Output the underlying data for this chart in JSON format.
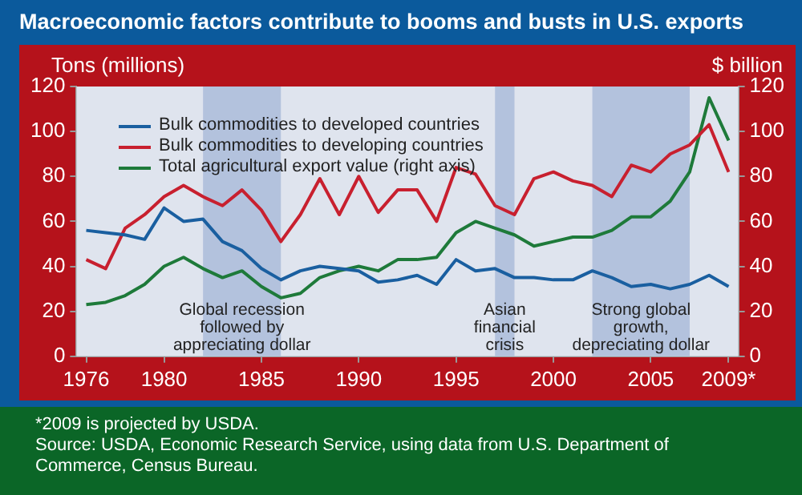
{
  "chart_data": {
    "type": "line",
    "title": "Macroeconomic factors contribute to booms and busts in U.S. exports",
    "ylabel": "Tons (millions)",
    "y2label": "$ billion",
    "x": [
      1976,
      1977,
      1978,
      1979,
      1980,
      1981,
      1982,
      1983,
      1984,
      1985,
      1986,
      1987,
      1988,
      1989,
      1990,
      1991,
      1992,
      1993,
      1994,
      1995,
      1996,
      1997,
      1998,
      1999,
      2000,
      2001,
      2002,
      2003,
      2004,
      2005,
      2006,
      2007,
      2008,
      2009
    ],
    "xlim": [
      1975.5,
      2009.5
    ],
    "xticks": [
      1976,
      1980,
      1985,
      1990,
      1995,
      2000,
      2005,
      {
        "value": 2009,
        "label": "2009*"
      }
    ],
    "ylim": [
      0,
      120
    ],
    "yticks": [
      0,
      20,
      40,
      60,
      80,
      100,
      120
    ],
    "y2lim": [
      0,
      120
    ],
    "y2ticks": [
      0,
      20,
      40,
      60,
      80,
      100,
      120
    ],
    "series": [
      {
        "name": "Bulk commodities to developed countries",
        "color": "#1a5fa0",
        "values": [
          56,
          55,
          54,
          52,
          66,
          60,
          61,
          51,
          47,
          39,
          34,
          38,
          40,
          39,
          38,
          33,
          34,
          36,
          32,
          43,
          38,
          39,
          35,
          35,
          34,
          34,
          38,
          35,
          31,
          32,
          30,
          32,
          36,
          31
        ]
      },
      {
        "name": "Bulk commodities to developing countries",
        "color": "#c8202f",
        "values": [
          43,
          39,
          57,
          63,
          71,
          76,
          71,
          67,
          74,
          65,
          51,
          63,
          79,
          63,
          80,
          64,
          74,
          74,
          60,
          84,
          81,
          67,
          63,
          79,
          82,
          78,
          76,
          71,
          85,
          82,
          90,
          94,
          103,
          82
        ]
      },
      {
        "name": "Total agricultural export value (right axis)",
        "color": "#1e7a3a",
        "axis": "y2",
        "values": [
          23,
          24,
          27,
          32,
          40,
          44,
          39,
          35,
          38,
          31,
          26,
          28,
          35,
          38,
          40,
          38,
          43,
          43,
          44,
          55,
          60,
          57,
          54,
          49,
          51,
          53,
          53,
          56,
          62,
          62,
          69,
          82,
          115,
          96
        ]
      }
    ],
    "bands": [
      {
        "axis": "x",
        "from": 1982,
        "to": 1986,
        "label": "Global recession followed by appreciating dollar",
        "color": "#b3c2dd"
      },
      {
        "axis": "x",
        "from": 1997,
        "to": 1998,
        "label": "Asian financial crisis",
        "color": "#b3c2dd"
      },
      {
        "axis": "x",
        "from": 2002,
        "to": 2007,
        "label": "Strong global growth, depreciating dollar",
        "color": "#b3c2dd"
      }
    ],
    "legend": "top left",
    "grid": false,
    "line_style": "solid",
    "marker": "none",
    "annotations": [
      "*2009 is projected by USDA.",
      "Source: USDA, Economic Research Service, using data from U.S. Department of Commerce, Census Bureau."
    ]
  }
}
